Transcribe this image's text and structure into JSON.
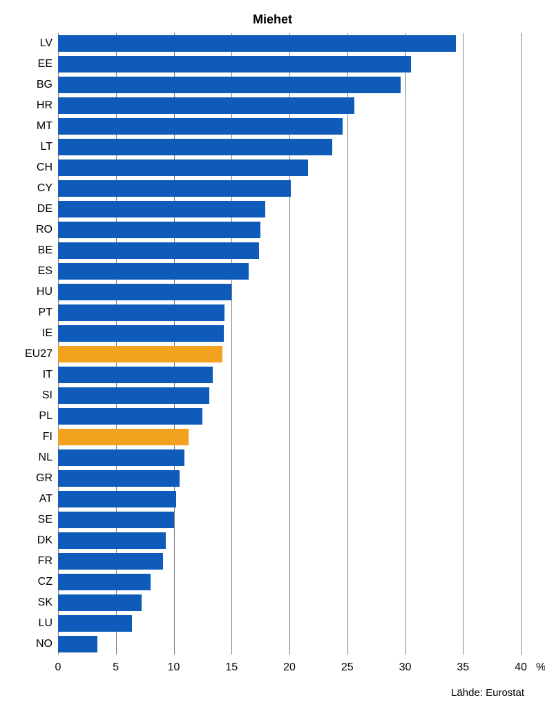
{
  "chart": {
    "type": "bar",
    "orientation": "horizontal",
    "title": "Miehet",
    "title_fontsize": 18,
    "title_fontweight": "bold",
    "background_color": "#ffffff",
    "grid_color": "#808080",
    "bar_default_color": "#0f5bb9",
    "bar_highlight_color": "#f2a21e",
    "label_fontsize": 16,
    "xaxis": {
      "min": 0,
      "max": 40,
      "tick_step": 5,
      "ticks": [
        0,
        5,
        10,
        15,
        20,
        25,
        30,
        35,
        40
      ],
      "unit_label": "%"
    },
    "bars": [
      {
        "label": "LV",
        "value": 34.4,
        "color": "#0f5bb9"
      },
      {
        "label": "EE",
        "value": 30.5,
        "color": "#0f5bb9"
      },
      {
        "label": "BG",
        "value": 29.6,
        "color": "#0f5bb9"
      },
      {
        "label": "HR",
        "value": 25.6,
        "color": "#0f5bb9"
      },
      {
        "label": "MT",
        "value": 24.6,
        "color": "#0f5bb9"
      },
      {
        "label": "LT",
        "value": 23.7,
        "color": "#0f5bb9"
      },
      {
        "label": "CH",
        "value": 21.6,
        "color": "#0f5bb9"
      },
      {
        "label": "CY",
        "value": 20.1,
        "color": "#0f5bb9"
      },
      {
        "label": "DE",
        "value": 17.9,
        "color": "#0f5bb9"
      },
      {
        "label": "RO",
        "value": 17.5,
        "color": "#0f5bb9"
      },
      {
        "label": "BE",
        "value": 17.4,
        "color": "#0f5bb9"
      },
      {
        "label": "ES",
        "value": 16.5,
        "color": "#0f5bb9"
      },
      {
        "label": "HU",
        "value": 15.0,
        "color": "#0f5bb9"
      },
      {
        "label": "PT",
        "value": 14.4,
        "color": "#0f5bb9"
      },
      {
        "label": "IE",
        "value": 14.3,
        "color": "#0f5bb9"
      },
      {
        "label": "EU27",
        "value": 14.2,
        "color": "#f2a21e"
      },
      {
        "label": "IT",
        "value": 13.4,
        "color": "#0f5bb9"
      },
      {
        "label": "SI",
        "value": 13.1,
        "color": "#0f5bb9"
      },
      {
        "label": "PL",
        "value": 12.5,
        "color": "#0f5bb9"
      },
      {
        "label": "FI",
        "value": 11.3,
        "color": "#f2a21e"
      },
      {
        "label": "NL",
        "value": 10.9,
        "color": "#0f5bb9"
      },
      {
        "label": "GR",
        "value": 10.5,
        "color": "#0f5bb9"
      },
      {
        "label": "AT",
        "value": 10.2,
        "color": "#0f5bb9"
      },
      {
        "label": "SE",
        "value": 10.0,
        "color": "#0f5bb9"
      },
      {
        "label": "DK",
        "value": 9.3,
        "color": "#0f5bb9"
      },
      {
        "label": "FR",
        "value": 9.1,
        "color": "#0f5bb9"
      },
      {
        "label": "CZ",
        "value": 8.0,
        "color": "#0f5bb9"
      },
      {
        "label": "SK",
        "value": 7.2,
        "color": "#0f5bb9"
      },
      {
        "label": "LU",
        "value": 6.4,
        "color": "#0f5bb9"
      },
      {
        "label": "NO",
        "value": 3.4,
        "color": "#0f5bb9"
      }
    ],
    "source_label": "Lähde: Eurostat"
  }
}
